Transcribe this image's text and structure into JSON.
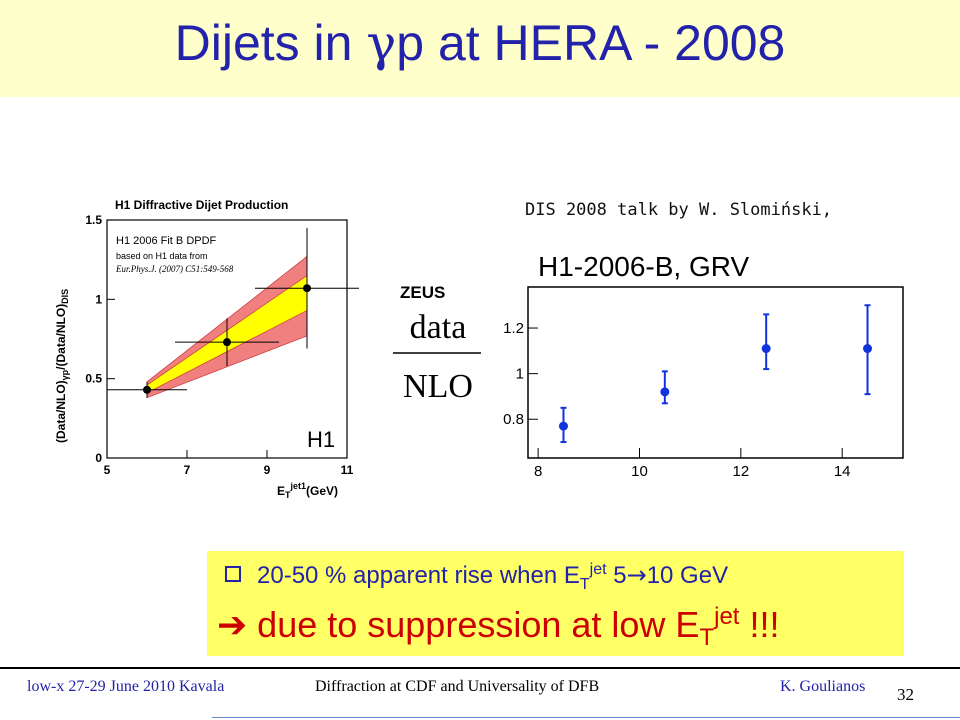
{
  "slide": {
    "title_prefix": "Dijets in ",
    "title_gamma": "γ",
    "title_suffix": "p at HERA - 2008"
  },
  "credit": "DIS 2008 talk by W. Slomiński,",
  "callout": {
    "bullet1_text": "20-50 % apparent rise when E",
    "bullet1_sub": "T",
    "bullet1_sup": "jet",
    "bullet1_tail": " 5",
    "bullet1_arrow": "→",
    "bullet1_end": "10 GeV",
    "bullet2_arrow": "➔",
    "bullet2_text": " due to suppression at low E",
    "bullet2_sub": "T",
    "bullet2_sup": "jet",
    "bullet2_end": " !!!"
  },
  "footer": {
    "left": "low-x 27-29 June 2010 Kavala",
    "middle": "Diffraction at CDF and Universality of DFB",
    "right": "K. Goulianos",
    "page": "32"
  },
  "colors": {
    "title": "#2222aa",
    "callout_bg": "#ffff66",
    "red_band": "#f08080",
    "yellow_band": "#ffff00",
    "zeus_points": "#1133dd"
  },
  "chart_data": [
    {
      "type": "scatter",
      "title": "H1 Diffractive Dijet Production",
      "legend_lines": [
        "H1 2006 Fit B DPDF",
        "based on H1 data from",
        "Eur.Phys.J. (2007) C51:549-568"
      ],
      "experiment_label": "H1",
      "ylabel_main": "(Data/NLO)",
      "ylabel_sub1": "γp",
      "ylabel_mid": "/(Data/NLO)",
      "ylabel_sub2": "DIS",
      "xlabel_main": "E",
      "xlabel_sub": "T",
      "xlabel_sup": "jet1",
      "xlabel_unit": "(GeV)",
      "xlim": [
        5,
        11
      ],
      "ylim": [
        0,
        1.5
      ],
      "x_ticks": [
        5,
        7,
        9,
        11
      ],
      "y_ticks": [
        0,
        0.5,
        1,
        1.5
      ],
      "x_tick_labels": [
        "5",
        "7",
        "9",
        "11"
      ],
      "y_tick_labels": [
        "0",
        "0.5",
        "1",
        "1.5"
      ],
      "points": [
        {
          "x": 6,
          "y": 0.43,
          "xerr": 1,
          "yerr": 0.05
        },
        {
          "x": 8,
          "y": 0.73,
          "xerr": 1.3,
          "yerr": 0.15
        },
        {
          "x": 10,
          "y": 1.07,
          "xerr": 1.3,
          "yerr": 0.38
        }
      ],
      "red_band": {
        "x": [
          6,
          10
        ],
        "lower": [
          0.38,
          0.77
        ],
        "upper": [
          0.48,
          1.27
        ]
      },
      "yellow_band": {
        "x": [
          6,
          10
        ],
        "lower": [
          0.41,
          0.93
        ],
        "upper": [
          0.46,
          1.15
        ]
      }
    },
    {
      "type": "scatter",
      "title": "H1-2006-B, GRV",
      "experiment_label": "ZEUS",
      "ylabel_numerator": "data",
      "ylabel_denominator": "NLO",
      "xlim": [
        7.8,
        15.2
      ],
      "ylim": [
        0.63,
        1.38
      ],
      "x_ticks": [
        8,
        10,
        12,
        14
      ],
      "y_ticks": [
        0.8,
        1,
        1.2
      ],
      "x_tick_labels": [
        "8",
        "10",
        "12",
        "14"
      ],
      "y_tick_labels": [
        "0.8",
        "1",
        "1.2"
      ],
      "points": [
        {
          "x": 8.5,
          "y": 0.77,
          "ylow": 0.7,
          "yhigh": 0.85
        },
        {
          "x": 10.5,
          "y": 0.92,
          "ylow": 0.87,
          "yhigh": 1.01
        },
        {
          "x": 12.5,
          "y": 1.11,
          "ylow": 1.02,
          "yhigh": 1.26
        },
        {
          "x": 14.5,
          "y": 1.11,
          "ylow": 0.91,
          "yhigh": 1.3
        }
      ]
    }
  ]
}
